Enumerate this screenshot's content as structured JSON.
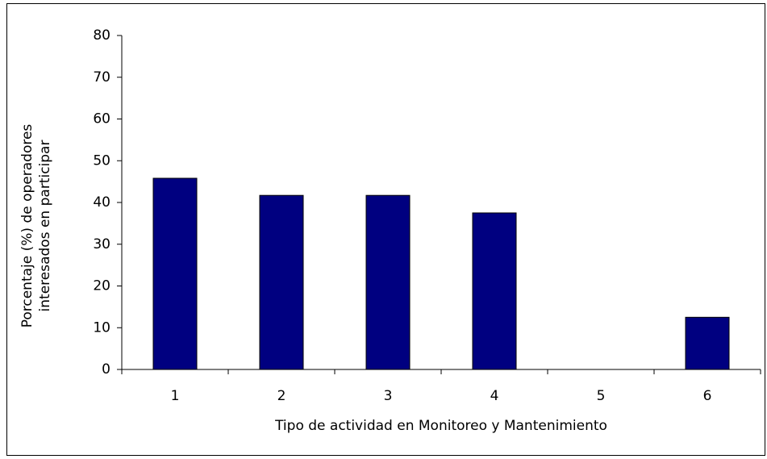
{
  "chart_data": {
    "type": "bar",
    "xlabel": "Tipo de actividad en Monitoreo y Mantenimiento",
    "ylabel": [
      "Porcentaje (%) de operadores",
      "interesados en participar"
    ],
    "categories": [
      "1",
      "2",
      "3",
      "4",
      "5",
      "6"
    ],
    "values": [
      45.8,
      41.7,
      41.7,
      37.5,
      0,
      12.5
    ],
    "color": "#000080",
    "ylim": [
      0,
      80
    ],
    "yticks": [
      0,
      10,
      20,
      30,
      40,
      50,
      60,
      70,
      80
    ],
    "grid": false
  }
}
